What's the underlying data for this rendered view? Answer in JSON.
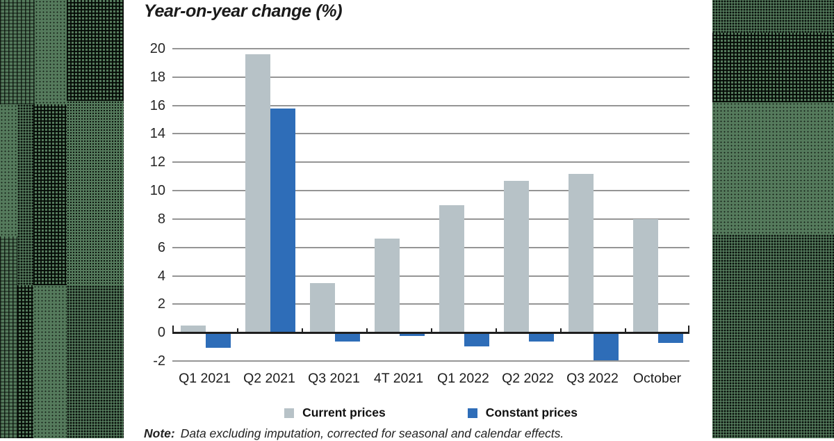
{
  "page": {
    "band_green": "#557a5c",
    "background": "#ffffff"
  },
  "chart": {
    "title": "Year-on-year change (%)",
    "note_label": "Note:",
    "note_text": "Data excluding imputation, corrected for seasonal and calendar effects.",
    "colors": {
      "current_prices": "#b7c2c7",
      "constant_prices": "#2e6db8",
      "gridline": "#959595",
      "zero_axis": "#1f1f1f"
    }
  },
  "chart_data": {
    "type": "bar",
    "title": "Year-on-year change (%)",
    "categories": [
      "Q1 2021",
      "Q2 2021",
      "Q3 2021",
      "4T 2021",
      "Q1 2022",
      "Q2 2022",
      "Q3 2022",
      "October"
    ],
    "series": [
      {
        "name": "Current prices",
        "color": "#b7c2c7",
        "values": [
          0.5,
          19.6,
          3.5,
          6.6,
          9.0,
          10.7,
          11.2,
          8.0
        ]
      },
      {
        "name": "Constant prices",
        "color": "#2e6db8",
        "values": [
          -1.0,
          15.8,
          -0.6,
          -0.2,
          -0.9,
          -0.6,
          -1.9,
          -0.7
        ]
      }
    ],
    "xlabel": "",
    "ylabel": "",
    "ylim": [
      -2,
      20
    ],
    "ytick_step": 2,
    "grid": true,
    "legend_position": "bottom"
  }
}
